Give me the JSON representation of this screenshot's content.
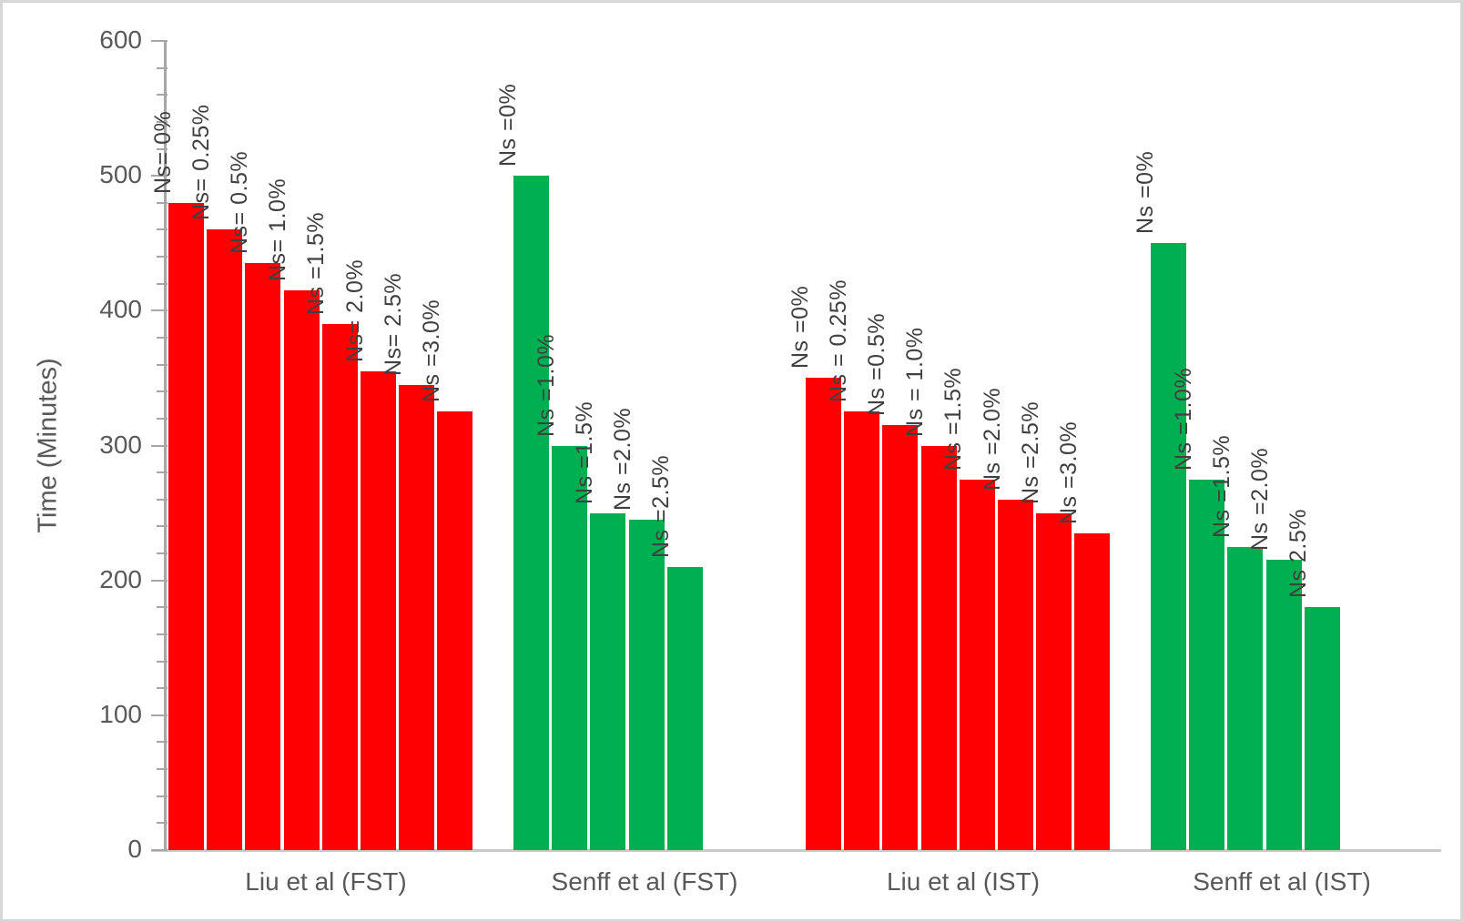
{
  "chart_data": {
    "type": "bar",
    "title": "",
    "ylabel": "Time (Minutes)",
    "xlabel": "",
    "ylim": [
      0,
      600
    ],
    "yticks": [
      0,
      100,
      200,
      300,
      400,
      500,
      600
    ],
    "minor_tick_step": 20,
    "grid": false,
    "legend": "none",
    "colors": {
      "red": "#ff0000",
      "green": "#00b050",
      "axis": "#a6a6a6",
      "text": "#595959",
      "data_label_text": "#404040"
    },
    "groups": [
      {
        "category": "Liu et al (FST)",
        "color": "red",
        "bars": [
          {
            "label": "Ns= 0%",
            "value": 480
          },
          {
            "label": "Ns= 0.25%",
            "value": 460
          },
          {
            "label": "Ns= 0.5%",
            "value": 435
          },
          {
            "label": "Ns= 1.0%",
            "value": 415
          },
          {
            "label": "Ns =1.5%",
            "value": 390
          },
          {
            "label": "Ns= 2.0%",
            "value": 355
          },
          {
            "label": "Ns= 2.5%",
            "value": 345
          },
          {
            "label": "Ns =3.0%",
            "value": 325
          }
        ]
      },
      {
        "category": "Senff et al (FST)",
        "color": "green",
        "bars": [
          {
            "label": "Ns =0%",
            "value": 500
          },
          {
            "label": "Ns =1.0%",
            "value": 300
          },
          {
            "label": "Ns =1.5%",
            "value": 250
          },
          {
            "label": "Ns =2.0%",
            "value": 245
          },
          {
            "label": "Ns =2.5%",
            "value": 210
          }
        ]
      },
      {
        "category": "Liu et al (IST)",
        "color": "red",
        "bars": [
          {
            "label": "Ns =0%",
            "value": 350
          },
          {
            "label": "Ns = 0.25%",
            "value": 325
          },
          {
            "label": "Ns =0.5%",
            "value": 315
          },
          {
            "label": "Ns = 1.0%",
            "value": 300
          },
          {
            "label": "Ns =1.5%",
            "value": 275
          },
          {
            "label": "Ns =2.0%",
            "value": 260
          },
          {
            "label": "Ns =2.5%",
            "value": 250
          },
          {
            "label": "Ns =3.0%",
            "value": 235
          }
        ]
      },
      {
        "category": "Senff et al (IST)",
        "color": "green",
        "bars": [
          {
            "label": "Ns =0%",
            "value": 450
          },
          {
            "label": "Ns =1.0%",
            "value": 275
          },
          {
            "label": "Ns =1.5%",
            "value": 225
          },
          {
            "label": "Ns =2.0%",
            "value": 215
          },
          {
            "label": "Ns 2.5%",
            "value": 180
          }
        ]
      }
    ]
  }
}
